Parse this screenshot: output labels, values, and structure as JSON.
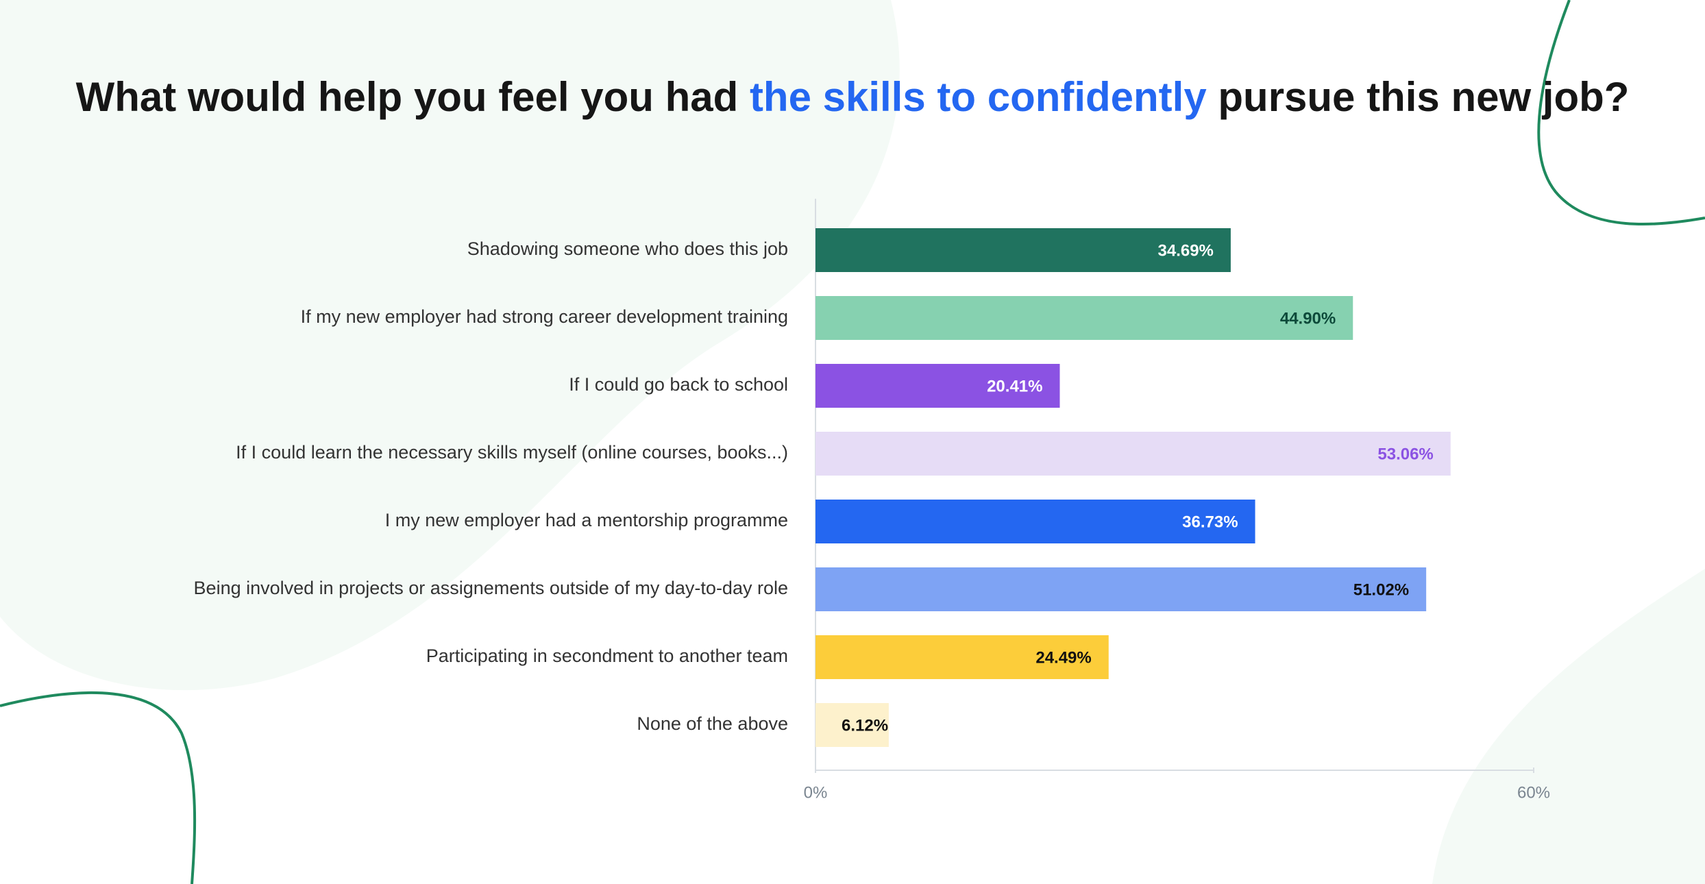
{
  "chart_data": {
    "type": "hbar",
    "title_parts": [
      {
        "text": "What would help you feel you had ",
        "color": "#161616"
      },
      {
        "text": "the skills to confidently",
        "color": "#2467f1"
      },
      {
        "text": " pursue this new job?",
        "color": "#161616"
      }
    ],
    "categories": [
      "Shadowing someone who does this job",
      "If my new employer had strong career development training",
      "If I could go back to school",
      "If I could learn the necessary skills myself (online courses, books...)",
      "I my new employer had a mentorship programme",
      "Being involved in projects or assignements outside of my day-to-day role",
      "Participating in secondment to another team",
      "None of the above"
    ],
    "values": [
      34.69,
      44.9,
      20.41,
      53.06,
      36.73,
      51.02,
      24.49,
      6.12
    ],
    "value_labels": [
      "34.69%",
      "44.90%",
      "20.41%",
      "53.06%",
      "36.73%",
      "51.02%",
      "24.49%",
      "6.12%"
    ],
    "colors": [
      "#20735f",
      "#86d1b0",
      "#8b52e3",
      "#e6dcf6",
      "#2467f1",
      "#7ea3f4",
      "#fccd3a",
      "#fdf1cc"
    ],
    "label_colors": [
      "#ffffff",
      "#0d4a3a",
      "#ffffff",
      "#8b52e3",
      "#ffffff",
      "#111111",
      "#111111",
      "#111111"
    ],
    "xlim": [
      0,
      60
    ],
    "xticks": [
      {
        "value": 0,
        "label": "0%"
      },
      {
        "value": 60,
        "label": "60%"
      }
    ]
  }
}
